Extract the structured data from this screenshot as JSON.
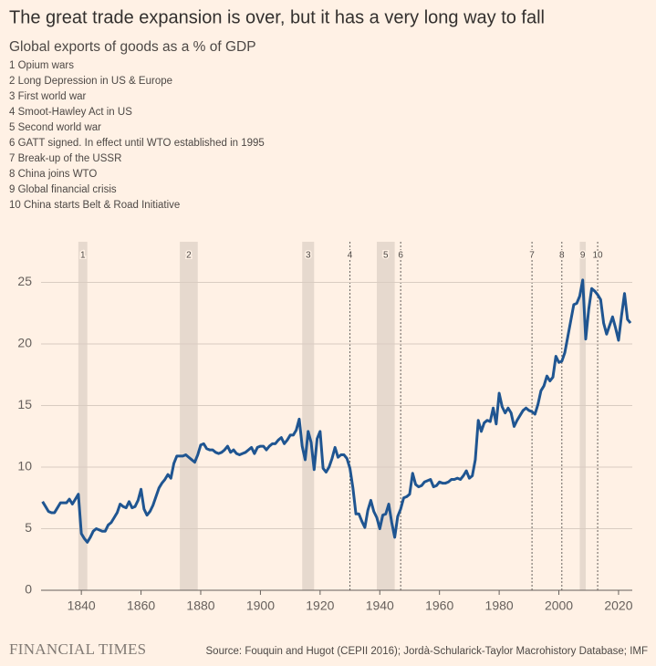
{
  "chart_data": {
    "type": "line",
    "title": "The great trade expansion is over, but it has a very long way to fall",
    "subtitle": "Global exports of goods as a % of GDP",
    "events": [
      {
        "number": "1",
        "label": "Opium wars",
        "start": 1839,
        "end": 1842
      },
      {
        "number": "2",
        "label": "Long Depression in US & Europe",
        "start": 1873,
        "end": 1879
      },
      {
        "number": "3",
        "label": "First world war",
        "start": 1914,
        "end": 1918
      },
      {
        "number": "4",
        "label": "Smoot-Hawley Act in US",
        "year": 1930
      },
      {
        "number": "5",
        "label": "Second world war",
        "start": 1939,
        "end": 1945
      },
      {
        "number": "6",
        "label": "GATT signed. In effect until WTO established in 1995",
        "year": 1947
      },
      {
        "number": "7",
        "label": "Break-up of the USSR",
        "year": 1991
      },
      {
        "number": "8",
        "label": "China joins WTO",
        "year": 2001
      },
      {
        "number": "9",
        "label": "Global financial crisis",
        "start": 2007,
        "end": 2009
      },
      {
        "number": "10",
        "label": "China starts Belt & Road Initiative",
        "year": 2013
      }
    ],
    "x": [
      1827,
      1828,
      1829,
      1830,
      1831,
      1832,
      1833,
      1834,
      1835,
      1836,
      1837,
      1838,
      1839,
      1840,
      1841,
      1842,
      1843,
      1844,
      1845,
      1846,
      1847,
      1848,
      1849,
      1850,
      1851,
      1852,
      1853,
      1854,
      1855,
      1856,
      1857,
      1858,
      1859,
      1860,
      1861,
      1862,
      1863,
      1864,
      1865,
      1866,
      1867,
      1868,
      1869,
      1870,
      1871,
      1872,
      1873,
      1874,
      1875,
      1876,
      1877,
      1878,
      1879,
      1880,
      1881,
      1882,
      1883,
      1884,
      1885,
      1886,
      1887,
      1888,
      1889,
      1890,
      1891,
      1892,
      1893,
      1894,
      1895,
      1896,
      1897,
      1898,
      1899,
      1900,
      1901,
      1902,
      1903,
      1904,
      1905,
      1906,
      1907,
      1908,
      1909,
      1910,
      1911,
      1912,
      1913,
      1914,
      1915,
      1916,
      1917,
      1918,
      1919,
      1920,
      1921,
      1922,
      1923,
      1924,
      1925,
      1926,
      1927,
      1928,
      1929,
      1930,
      1931,
      1932,
      1933,
      1934,
      1935,
      1936,
      1937,
      1938,
      1939,
      1940,
      1941,
      1942,
      1943,
      1944,
      1945,
      1946,
      1947,
      1948,
      1949,
      1950,
      1951,
      1952,
      1953,
      1954,
      1955,
      1956,
      1957,
      1958,
      1959,
      1960,
      1961,
      1962,
      1963,
      1964,
      1965,
      1966,
      1967,
      1968,
      1969,
      1970,
      1971,
      1972,
      1973,
      1974,
      1975,
      1976,
      1977,
      1978,
      1979,
      1980,
      1981,
      1982,
      1983,
      1984,
      1985,
      1986,
      1987,
      1988,
      1989,
      1990,
      1991,
      1992,
      1993,
      1994,
      1995,
      1996,
      1997,
      1998,
      1999,
      2000,
      2001,
      2002,
      2003,
      2004,
      2005,
      2006,
      2007,
      2008,
      2009,
      2010,
      2011,
      2012,
      2013,
      2014,
      2015,
      2016,
      2017,
      2018,
      2019,
      2020,
      2021,
      2022,
      2023,
      2024
    ],
    "values": [
      7.2,
      6.8,
      6.4,
      6.3,
      6.3,
      6.7,
      7.1,
      7.1,
      7.1,
      7.4,
      7.0,
      7.4,
      7.8,
      4.6,
      4.2,
      3.9,
      4.3,
      4.8,
      5.0,
      4.9,
      4.8,
      4.8,
      5.3,
      5.5,
      5.9,
      6.3,
      7.0,
      6.8,
      6.7,
      7.2,
      6.7,
      6.8,
      7.3,
      8.2,
      6.6,
      6.1,
      6.4,
      6.9,
      7.6,
      8.3,
      8.7,
      9.0,
      9.4,
      9.1,
      10.3,
      10.9,
      10.9,
      10.9,
      11.0,
      10.8,
      10.6,
      10.4,
      11.0,
      11.8,
      11.9,
      11.5,
      11.4,
      11.4,
      11.2,
      11.1,
      11.2,
      11.4,
      11.7,
      11.2,
      11.4,
      11.1,
      11.0,
      11.1,
      11.2,
      11.4,
      11.6,
      11.1,
      11.6,
      11.7,
      11.7,
      11.4,
      11.7,
      11.9,
      11.9,
      12.2,
      12.4,
      11.9,
      12.2,
      12.6,
      12.6,
      13.0,
      13.9,
      11.7,
      10.6,
      12.9,
      12.0,
      9.8,
      12.3,
      12.9,
      9.9,
      9.6,
      10.0,
      10.7,
      11.6,
      10.8,
      11.0,
      11.0,
      10.7,
      9.9,
      8.3,
      6.2,
      6.2,
      5.6,
      5.1,
      6.5,
      7.3,
      6.4,
      5.9,
      5.0,
      6.1,
      6.2,
      7.0,
      5.5,
      4.3,
      6.0,
      6.6,
      7.5,
      7.6,
      7.8,
      9.5,
      8.6,
      8.4,
      8.5,
      8.8,
      8.9,
      9.0,
      8.4,
      8.5,
      8.8,
      8.7,
      8.7,
      8.8,
      9.0,
      9.0,
      9.1,
      9.0,
      9.3,
      9.7,
      9.1,
      9.3,
      10.6,
      13.8,
      12.9,
      13.6,
      13.8,
      13.7,
      14.8,
      13.5,
      16.0,
      14.9,
      14.4,
      14.8,
      14.4,
      13.3,
      13.8,
      14.2,
      14.6,
      14.8,
      14.6,
      14.5,
      14.3,
      15.1,
      16.2,
      16.6,
      17.4,
      17.0,
      17.3,
      19.0,
      18.5,
      18.6,
      19.3,
      20.6,
      21.9,
      23.2,
      23.3,
      23.9,
      25.2,
      20.4,
      22.8,
      24.5,
      24.3,
      24.0,
      23.6,
      21.7,
      20.8,
      21.5,
      22.2,
      21.3,
      20.3,
      22.3,
      24.1,
      22.0,
      21.7
    ],
    "color": "#1f5591",
    "band_color": "#e6d9ce",
    "xlim": [
      1826.5,
      2024.6
    ],
    "xticks": [
      1840,
      1860,
      1880,
      1900,
      1920,
      1940,
      1960,
      1980,
      2000,
      2020
    ],
    "ylim": [
      0,
      28.3
    ],
    "yticks": [
      0,
      5,
      10,
      15,
      20,
      25
    ],
    "grid": true,
    "brand": "FINANCIAL TIMES",
    "source": "Source: Fouquin and Hugot (CEPII 2016); Jordà-Schularick-Taylor Macrohistory Database; IMF"
  }
}
